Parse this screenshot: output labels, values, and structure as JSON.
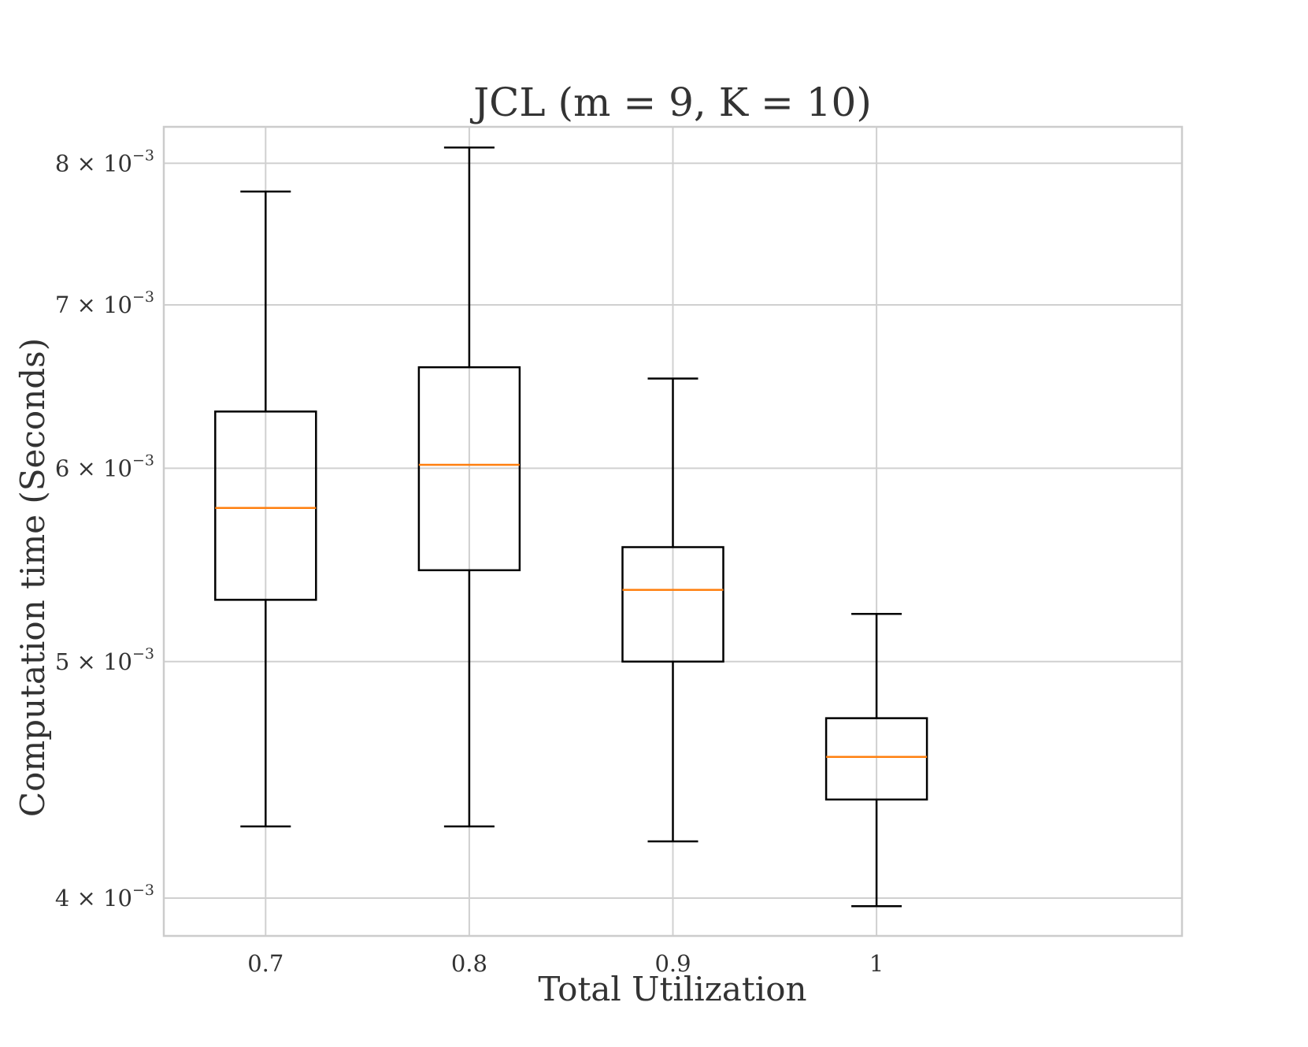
{
  "chart_data": {
    "type": "box",
    "title": "JCL (m = 9, K = 10)",
    "xlabel": "Total Utilization",
    "ylabel": "Computation time (Seconds)",
    "yscale": "log",
    "ylim": [
      0.00386,
      0.00828
    ],
    "grid": true,
    "categories": [
      "0.7",
      "0.8",
      "0.9",
      "1"
    ],
    "yticks": [
      {
        "value": 0.004,
        "mantissa": "4",
        "base": "10",
        "exponent": "−3"
      },
      {
        "value": 0.005,
        "mantissa": "5",
        "base": "10",
        "exponent": "−3"
      },
      {
        "value": 0.006,
        "mantissa": "6",
        "base": "10",
        "exponent": "−3"
      },
      {
        "value": 0.007,
        "mantissa": "7",
        "base": "10",
        "exponent": "−3"
      },
      {
        "value": 0.008,
        "mantissa": "8",
        "base": "10",
        "exponent": "−3"
      }
    ],
    "boxes": [
      {
        "category": "0.7",
        "whisker_low": 0.00428,
        "q1": 0.0053,
        "median": 0.00578,
        "q3": 0.00633,
        "whisker_high": 0.00779
      },
      {
        "category": "0.8",
        "whisker_low": 0.00428,
        "q1": 0.00545,
        "median": 0.00602,
        "q3": 0.0066,
        "whisker_high": 0.00812
      },
      {
        "category": "0.9",
        "whisker_low": 0.00422,
        "q1": 0.005,
        "median": 0.00535,
        "q3": 0.00557,
        "whisker_high": 0.00653
      },
      {
        "category": "1",
        "whisker_low": 0.00397,
        "q1": 0.00439,
        "median": 0.00457,
        "q3": 0.00474,
        "whisker_high": 0.00523
      }
    ],
    "colors": {
      "box": "#000000",
      "median": "#ff7f0e",
      "grid": "#d0d0d0",
      "frame": "#cccccc"
    }
  }
}
